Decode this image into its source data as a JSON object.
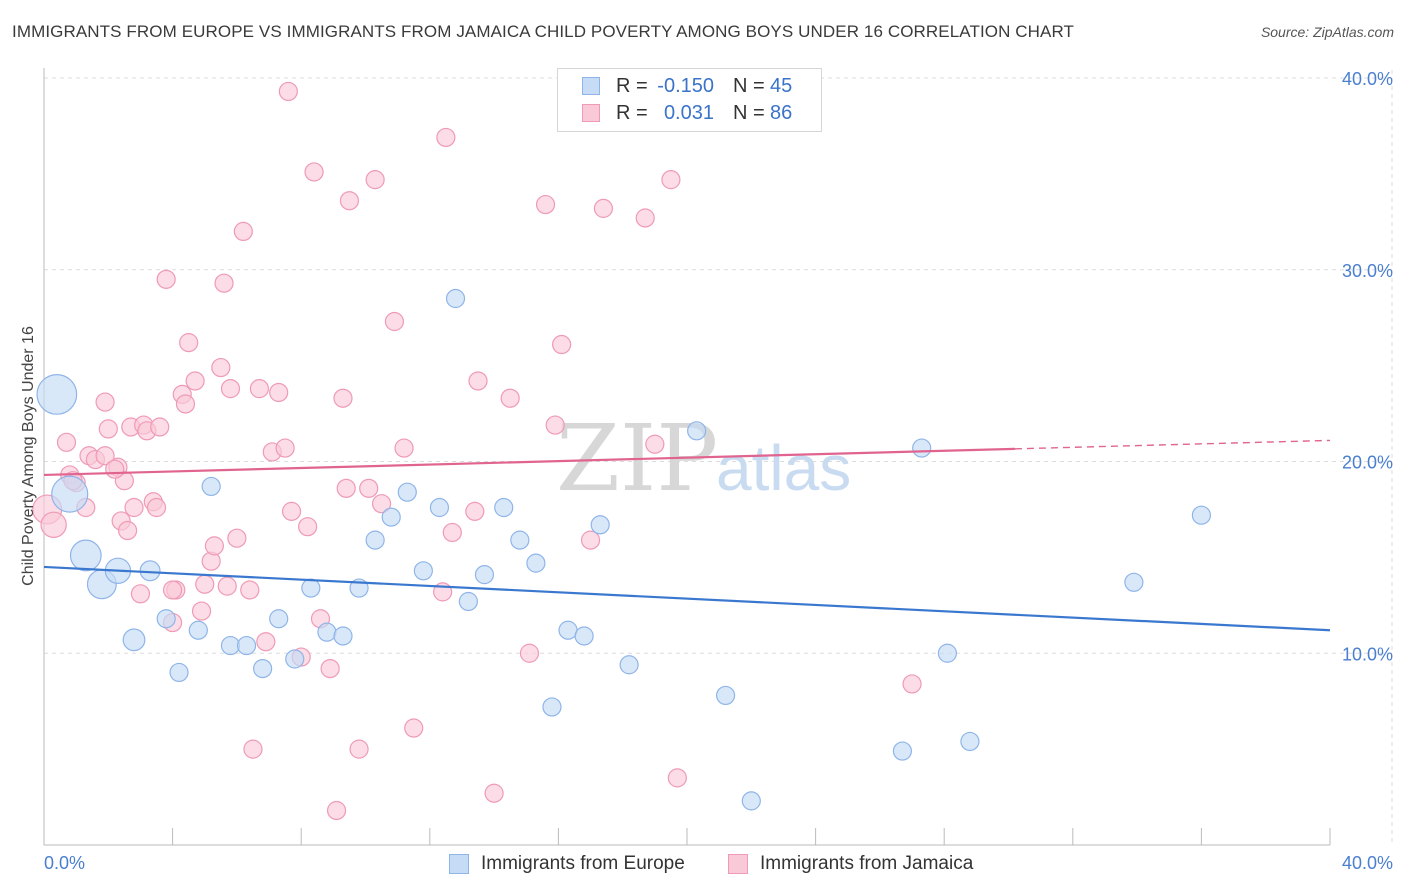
{
  "header": {
    "title": "IMMIGRANTS FROM EUROPE VS IMMIGRANTS FROM JAMAICA CHILD POVERTY AMONG BOYS UNDER 16 CORRELATION CHART",
    "source": "Source: ZipAtlas.com"
  },
  "watermark": {
    "zip": "ZIP",
    "atlas": "atlas"
  },
  "legend_top": {
    "rows": [
      {
        "r_label": "R =",
        "r_value": "-0.150",
        "n_label": "N =",
        "n_value": "45",
        "color": "#8fb5e8",
        "fill": "#c5dbf6"
      },
      {
        "r_label": "R =",
        "r_value": "0.031",
        "n_label": "N =",
        "n_value": "86",
        "color": "#ef9ab6",
        "fill": "#fac9d8"
      }
    ]
  },
  "legend_bottom": {
    "items": [
      {
        "label": "Immigrants from Europe",
        "color": "#8fb5e8",
        "fill": "#c5dbf6"
      },
      {
        "label": "Immigrants from Jamaica",
        "color": "#ef9ab6",
        "fill": "#fac9d8"
      }
    ]
  },
  "chart_data": {
    "type": "scatter",
    "title": "IMMIGRANTS FROM EUROPE VS IMMIGRANTS FROM JAMAICA CHILD POVERTY AMONG BOYS UNDER 16 CORRELATION CHART",
    "xlabel": "",
    "ylabel": "Child Poverty Among Boys Under 16",
    "xlim": [
      0,
      40
    ],
    "ylim": [
      0,
      40
    ],
    "x_tick_labels": [
      "0.0%",
      "40.0%"
    ],
    "y_ticks": [
      10,
      20,
      30,
      40
    ],
    "y_tick_labels": [
      "10.0%",
      "20.0%",
      "30.0%",
      "40.0%"
    ],
    "grid": true,
    "legend_position": "top-center",
    "series": [
      {
        "name": "Immigrants from Europe",
        "color": "#3a78cf",
        "marker_stroke": "#8fb5e8",
        "marker_fill": "#c5dbf6",
        "trend": {
          "x": [
            0,
            40
          ],
          "y": [
            14.5,
            11.2
          ],
          "dashed_from": null
        },
        "points": [
          [
            0.4,
            23.5,
            2.2
          ],
          [
            0.8,
            18.3,
            2.0
          ],
          [
            1.3,
            15.1,
            1.7
          ],
          [
            1.8,
            13.6,
            1.6
          ],
          [
            2.3,
            14.3,
            1.4
          ],
          [
            2.8,
            10.7,
            1.2
          ],
          [
            3.3,
            14.3,
            1.1
          ],
          [
            3.8,
            11.8,
            1.0
          ],
          [
            4.2,
            9.0,
            1.0
          ],
          [
            4.8,
            11.2,
            1.0
          ],
          [
            5.2,
            18.7,
            1.0
          ],
          [
            5.8,
            10.4,
            1.0
          ],
          [
            6.3,
            10.4,
            1.0
          ],
          [
            6.8,
            9.2,
            1.0
          ],
          [
            7.3,
            11.8,
            1.0
          ],
          [
            7.8,
            9.7,
            1.0
          ],
          [
            8.3,
            13.4,
            1.0
          ],
          [
            8.8,
            11.1,
            1.0
          ],
          [
            9.3,
            10.9,
            1.0
          ],
          [
            9.8,
            13.4,
            1.0
          ],
          [
            10.3,
            15.9,
            1.0
          ],
          [
            10.8,
            17.1,
            1.0
          ],
          [
            11.3,
            18.4,
            1.0
          ],
          [
            11.8,
            14.3,
            1.0
          ],
          [
            12.3,
            17.6,
            1.0
          ],
          [
            12.8,
            28.5,
            1.0
          ],
          [
            13.2,
            12.7,
            1.0
          ],
          [
            13.7,
            14.1,
            1.0
          ],
          [
            14.3,
            17.6,
            1.0
          ],
          [
            14.8,
            15.9,
            1.0
          ],
          [
            15.3,
            14.7,
            1.0
          ],
          [
            15.8,
            7.2,
            1.0
          ],
          [
            16.3,
            11.2,
            1.0
          ],
          [
            16.8,
            10.9,
            1.0
          ],
          [
            17.3,
            16.7,
            1.0
          ],
          [
            18.2,
            9.4,
            1.0
          ],
          [
            20.3,
            21.6,
            1.0
          ],
          [
            21.2,
            7.8,
            1.0
          ],
          [
            22.0,
            2.3,
            1.0
          ],
          [
            26.7,
            4.9,
            1.0
          ],
          [
            27.3,
            20.7,
            1.0
          ],
          [
            28.1,
            10.0,
            1.0
          ],
          [
            28.8,
            5.4,
            1.0
          ],
          [
            33.9,
            13.7,
            1.0
          ],
          [
            36.0,
            17.2,
            1.0
          ]
        ]
      },
      {
        "name": "Immigrants from Jamaica",
        "color": "#e0648f",
        "marker_stroke": "#ef9ab6",
        "marker_fill": "#fac9d8",
        "trend": {
          "x": [
            0,
            40
          ],
          "y": [
            19.3,
            21.1
          ],
          "dashed_from": 30.2
        },
        "points": [
          [
            0.1,
            17.5,
            1.6
          ],
          [
            0.3,
            16.7,
            1.4
          ],
          [
            0.7,
            21.0,
            1.0
          ],
          [
            0.8,
            19.3,
            1.0
          ],
          [
            1.0,
            18.9,
            1.0
          ],
          [
            1.3,
            17.6,
            1.0
          ],
          [
            1.4,
            20.3,
            1.0
          ],
          [
            1.6,
            20.1,
            1.0
          ],
          [
            1.9,
            23.1,
            1.0
          ],
          [
            2.0,
            21.7,
            1.0
          ],
          [
            2.3,
            19.7,
            1.0
          ],
          [
            2.4,
            16.9,
            1.0
          ],
          [
            2.5,
            19.0,
            1.0
          ],
          [
            2.6,
            16.4,
            1.0
          ],
          [
            2.7,
            21.8,
            1.0
          ],
          [
            2.8,
            17.6,
            1.0
          ],
          [
            3.0,
            13.1,
            1.0
          ],
          [
            3.1,
            21.9,
            1.0
          ],
          [
            3.2,
            21.6,
            1.0
          ],
          [
            3.4,
            17.9,
            1.0
          ],
          [
            3.5,
            17.6,
            1.0
          ],
          [
            3.6,
            21.8,
            1.0
          ],
          [
            3.8,
            29.5,
            1.0
          ],
          [
            4.0,
            11.6,
            1.0
          ],
          [
            4.1,
            13.3,
            1.0
          ],
          [
            4.3,
            23.5,
            1.0
          ],
          [
            4.4,
            23.0,
            1.0
          ],
          [
            4.5,
            26.2,
            1.0
          ],
          [
            4.7,
            24.2,
            1.0
          ],
          [
            4.9,
            12.2,
            1.0
          ],
          [
            5.0,
            13.6,
            1.0
          ],
          [
            5.2,
            14.8,
            1.0
          ],
          [
            5.3,
            15.6,
            1.0
          ],
          [
            5.5,
            24.9,
            1.0
          ],
          [
            5.6,
            29.3,
            1.0
          ],
          [
            5.8,
            23.8,
            1.0
          ],
          [
            6.0,
            16.0,
            1.0
          ],
          [
            6.2,
            32.0,
            1.0
          ],
          [
            6.4,
            13.3,
            1.0
          ],
          [
            6.5,
            5.0,
            1.0
          ],
          [
            6.7,
            23.8,
            1.0
          ],
          [
            6.9,
            10.6,
            1.0
          ],
          [
            7.1,
            20.5,
            1.0
          ],
          [
            7.3,
            23.6,
            1.0
          ],
          [
            7.5,
            20.7,
            1.0
          ],
          [
            7.7,
            17.4,
            1.0
          ],
          [
            7.6,
            39.3,
            1.0
          ],
          [
            8.0,
            9.8,
            1.0
          ],
          [
            8.2,
            16.6,
            1.0
          ],
          [
            8.4,
            35.1,
            1.0
          ],
          [
            8.6,
            11.8,
            1.0
          ],
          [
            8.9,
            9.2,
            1.0
          ],
          [
            9.1,
            1.8,
            1.0
          ],
          [
            9.3,
            23.3,
            1.0
          ],
          [
            9.5,
            33.6,
            1.0
          ],
          [
            9.8,
            5.0,
            1.0
          ],
          [
            10.1,
            18.6,
            1.0
          ],
          [
            10.3,
            34.7,
            1.0
          ],
          [
            10.5,
            17.8,
            1.0
          ],
          [
            10.9,
            27.3,
            1.0
          ],
          [
            11.5,
            6.1,
            1.0
          ],
          [
            12.4,
            13.2,
            1.0
          ],
          [
            12.5,
            36.9,
            1.0
          ],
          [
            12.7,
            16.3,
            1.0
          ],
          [
            13.5,
            24.2,
            1.0
          ],
          [
            14.0,
            2.7,
            1.0
          ],
          [
            14.5,
            23.3,
            1.0
          ],
          [
            15.1,
            10.0,
            1.0
          ],
          [
            15.6,
            33.4,
            1.0
          ],
          [
            15.9,
            21.9,
            1.0
          ],
          [
            16.1,
            26.1,
            1.0
          ],
          [
            17.0,
            15.9,
            1.0
          ],
          [
            17.4,
            33.2,
            1.0
          ],
          [
            18.7,
            32.7,
            1.0
          ],
          [
            19.0,
            20.9,
            1.0
          ],
          [
            19.5,
            34.7,
            1.0
          ],
          [
            19.7,
            3.5,
            1.0
          ],
          [
            27.0,
            8.4,
            1.0
          ],
          [
            9.4,
            18.6,
            1.0
          ],
          [
            5.7,
            13.5,
            1.0
          ],
          [
            1.9,
            20.3,
            1.0
          ],
          [
            11.2,
            20.7,
            1.0
          ],
          [
            2.2,
            19.6,
            1.0
          ],
          [
            13.4,
            17.4,
            1.0
          ],
          [
            4.0,
            13.3,
            1.0
          ],
          [
            0.9,
            19.0,
            1.0
          ]
        ]
      }
    ]
  }
}
